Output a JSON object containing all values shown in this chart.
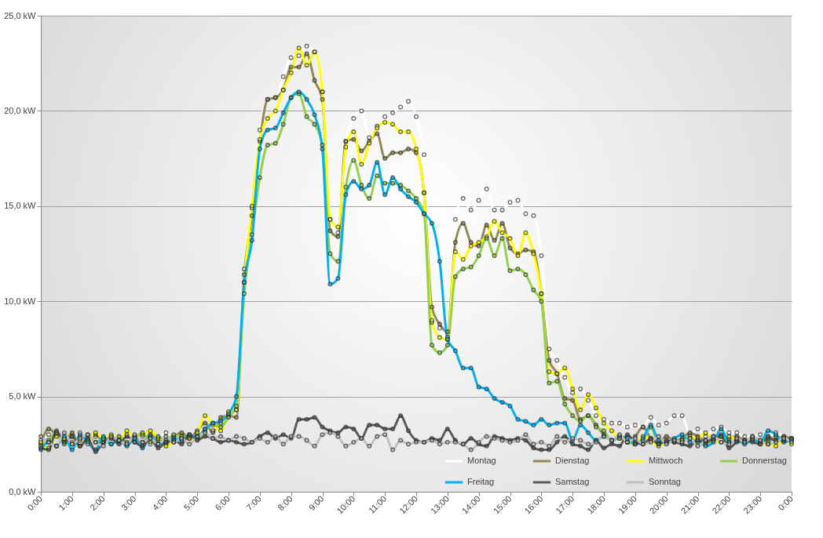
{
  "chart_data": {
    "type": "line",
    "x": [
      0,
      0.25,
      0.5,
      0.75,
      1,
      1.25,
      1.5,
      1.75,
      2,
      2.25,
      2.5,
      2.75,
      3,
      3.25,
      3.5,
      3.75,
      4,
      4.25,
      4.5,
      4.75,
      5,
      5.25,
      5.5,
      5.75,
      6,
      6.25,
      6.5,
      6.75,
      7,
      7.25,
      7.5,
      7.75,
      8,
      8.25,
      8.5,
      8.75,
      9,
      9.25,
      9.5,
      9.75,
      10,
      10.25,
      10.5,
      10.75,
      11,
      11.25,
      11.5,
      11.75,
      12,
      12.25,
      12.5,
      12.75,
      13,
      13.25,
      13.5,
      13.75,
      14,
      14.25,
      14.5,
      14.75,
      15,
      15.25,
      15.5,
      15.75,
      16,
      16.25,
      16.5,
      16.75,
      17,
      17.25,
      17.5,
      17.75,
      18,
      18.25,
      18.5,
      18.75,
      19,
      19.25,
      19.5,
      19.75,
      20,
      20.25,
      20.5,
      20.75,
      21,
      21.25,
      21.5,
      21.75,
      22,
      22.25,
      22.5,
      22.75,
      23,
      23.25,
      23.5,
      23.75,
      24
    ],
    "series": [
      {
        "name": "Montag",
        "color": "#ffffff",
        "values": [
          2.7,
          3.0,
          2.4,
          2.8,
          2.6,
          3.1,
          2.5,
          2.9,
          2.6,
          2.8,
          2.7,
          3.0,
          2.6,
          2.9,
          2.5,
          2.8,
          3.1,
          2.7,
          2.9,
          2.8,
          3.0,
          3.3,
          3.2,
          3.6,
          4.0,
          4.3,
          11.7,
          14.9,
          19.0,
          20.6,
          20.7,
          21.8,
          22.8,
          22.9,
          23.4,
          23.1,
          21.0,
          14.3,
          13.6,
          18.4,
          19.6,
          20.0,
          18.6,
          19.2,
          19.7,
          19.9,
          20.2,
          20.5,
          19.7,
          17.7,
          8.9,
          8.6,
          8.1,
          14.3,
          15.4,
          14.8,
          15.3,
          15.9,
          14.8,
          14.8,
          15.2,
          15.3,
          14.6,
          14.5,
          12.4,
          7.5,
          6.9,
          6.0,
          5.2,
          5.4,
          4.8,
          4.0,
          3.8,
          3.6,
          3.6,
          3.4,
          3.5,
          3.4,
          3.9,
          3.5,
          3.6,
          4.0,
          4.0,
          3.0,
          3.3,
          2.9,
          3.3,
          3.4,
          3.1,
          3.1,
          2.9,
          2.9,
          3.0,
          2.9,
          3.1,
          2.9,
          2.8
        ]
      },
      {
        "name": "Dienstag",
        "color": "#948a54",
        "values": [
          2.5,
          3.3,
          3.0,
          2.6,
          3.1,
          2.4,
          2.8,
          3.0,
          2.6,
          2.9,
          2.7,
          2.5,
          2.9,
          2.6,
          3.0,
          2.7,
          2.5,
          2.9,
          3.1,
          2.8,
          3.2,
          3.6,
          3.1,
          3.9,
          4.0,
          3.9,
          11.4,
          14.5,
          18.4,
          20.6,
          20.7,
          21.1,
          22.3,
          22.3,
          23.0,
          21.6,
          20.6,
          13.7,
          13.4,
          18.4,
          18.5,
          17.9,
          18.4,
          18.8,
          17.5,
          17.8,
          17.8,
          18.0,
          17.8,
          15.7,
          9.7,
          8.8,
          8.4,
          13.1,
          14.1,
          13.1,
          12.9,
          14.0,
          13.2,
          14.1,
          12.8,
          12.5,
          12.7,
          12.6,
          10.4,
          6.9,
          6.2,
          4.9,
          4.8,
          3.8,
          4.0,
          3.5,
          3.0,
          2.7,
          2.9,
          2.6,
          2.9,
          3.4,
          2.8,
          2.6,
          2.9,
          2.7,
          2.8,
          3.1,
          2.9,
          2.7,
          2.9,
          3.0,
          2.8,
          2.9,
          2.7,
          2.8,
          2.6,
          2.9,
          2.7,
          2.9,
          2.8
        ]
      },
      {
        "name": "Mittwoch",
        "color": "#ffff00",
        "values": [
          2.6,
          2.3,
          2.9,
          2.8,
          2.5,
          2.9,
          2.7,
          3.1,
          2.8,
          3.0,
          2.7,
          3.2,
          2.9,
          3.0,
          3.2,
          2.8,
          2.4,
          2.6,
          2.9,
          2.8,
          3.1,
          4.0,
          3.5,
          3.2,
          4.2,
          4.3,
          11.0,
          15.0,
          18.5,
          19.6,
          20.0,
          21.1,
          22.0,
          23.3,
          22.4,
          23.1,
          21.0,
          14.3,
          13.9,
          18.1,
          18.9,
          17.2,
          18.3,
          19.1,
          19.4,
          19.3,
          18.9,
          18.9,
          18.0,
          15.7,
          9.0,
          8.1,
          8.0,
          12.6,
          12.2,
          12.9,
          13.1,
          13.4,
          14.2,
          13.6,
          13.3,
          12.4,
          13.6,
          12.5,
          10.4,
          6.3,
          6.2,
          6.5,
          5.4,
          4.3,
          5.1,
          4.4,
          3.6,
          3.2,
          2.8,
          2.6,
          2.5,
          2.9,
          2.7,
          2.4,
          2.6,
          2.6,
          2.7,
          2.9,
          2.8,
          3.1,
          2.7,
          2.6,
          2.9,
          2.7,
          2.6,
          2.8,
          2.5,
          2.5,
          2.4,
          2.7,
          2.5
        ]
      },
      {
        "name": "Donnerstag",
        "color": "#92d050",
        "values": [
          2.4,
          2.7,
          3.1,
          2.5,
          2.9,
          2.7,
          3.0,
          2.6,
          2.8,
          2.5,
          2.9,
          2.6,
          2.8,
          3.1,
          2.6,
          2.9,
          2.7,
          3.0,
          2.8,
          2.9,
          2.8,
          3.2,
          3.6,
          3.4,
          3.9,
          4.5,
          10.4,
          13.5,
          16.5,
          18.2,
          18.3,
          19.3,
          20.7,
          20.9,
          19.7,
          19.3,
          18.2,
          12.5,
          12.1,
          16.0,
          17.4,
          16.1,
          15.4,
          16.6,
          16.2,
          16.2,
          16.1,
          15.8,
          15.4,
          14.6,
          7.7,
          7.3,
          7.7,
          11.3,
          11.7,
          11.8,
          12.4,
          13.3,
          12.4,
          13.3,
          11.6,
          11.7,
          11.4,
          10.6,
          10.0,
          5.7,
          5.8,
          4.6,
          4.0,
          3.7,
          4.0,
          3.4,
          3.2,
          2.7,
          2.8,
          2.6,
          2.5,
          2.7,
          3.4,
          2.5,
          2.6,
          2.6,
          2.7,
          2.8,
          2.6,
          2.5,
          2.7,
          2.9,
          2.6,
          2.7,
          2.6,
          2.8,
          2.7,
          2.6,
          2.9,
          2.8,
          2.7
        ]
      },
      {
        "name": "Freitag",
        "color": "#00b0f0",
        "values": [
          2.2,
          2.6,
          2.4,
          2.9,
          2.2,
          3.0,
          2.6,
          2.2,
          2.9,
          2.5,
          2.7,
          2.4,
          2.8,
          2.3,
          2.9,
          2.5,
          2.6,
          2.8,
          2.7,
          3.0,
          2.9,
          3.3,
          3.6,
          3.7,
          4.1,
          5.0,
          11.0,
          13.2,
          18.0,
          19.0,
          19.1,
          19.9,
          20.7,
          21.0,
          20.6,
          19.8,
          18.0,
          10.9,
          11.2,
          15.6,
          16.3,
          15.9,
          16.1,
          17.3,
          15.6,
          16.5,
          15.9,
          15.5,
          15.2,
          14.6,
          14.1,
          12.1,
          8.0,
          7.4,
          6.5,
          6.5,
          5.5,
          5.4,
          4.9,
          4.7,
          4.5,
          3.8,
          3.7,
          3.5,
          3.8,
          3.5,
          3.6,
          3.6,
          2.7,
          3.5,
          3.1,
          2.7,
          2.9,
          2.7,
          2.9,
          2.8,
          2.5,
          2.8,
          3.5,
          2.7,
          2.6,
          2.8,
          3.0,
          2.6,
          2.7,
          2.4,
          2.6,
          3.3,
          2.6,
          2.7,
          2.5,
          2.7,
          2.6,
          3.2,
          3.0,
          2.6,
          2.7
        ]
      },
      {
        "name": "Samstag",
        "color": "#595959",
        "values": [
          2.3,
          2.2,
          3.2,
          2.6,
          2.9,
          2.4,
          2.8,
          2.1,
          2.6,
          2.8,
          2.5,
          2.9,
          2.6,
          2.4,
          2.8,
          2.3,
          2.6,
          2.7,
          2.5,
          3.0,
          2.7,
          2.9,
          2.8,
          2.6,
          2.7,
          2.6,
          2.5,
          2.6,
          2.9,
          3.1,
          2.8,
          3.0,
          2.8,
          3.8,
          3.8,
          3.9,
          3.4,
          3.2,
          3.1,
          3.4,
          3.3,
          2.8,
          3.5,
          3.5,
          3.3,
          3.3,
          4.0,
          3.2,
          2.7,
          2.6,
          2.8,
          2.7,
          3.3,
          2.7,
          2.5,
          2.8,
          2.5,
          2.4,
          2.9,
          2.8,
          2.7,
          2.8,
          2.7,
          2.3,
          2.2,
          2.2,
          2.6,
          2.9,
          2.5,
          2.4,
          2.2,
          2.7,
          2.3,
          2.5,
          2.4,
          3.0,
          2.6,
          2.5,
          2.8,
          2.5,
          2.7,
          2.6,
          2.5,
          2.4,
          2.7,
          2.6,
          2.8,
          2.9,
          2.3,
          2.6,
          2.7,
          2.6,
          2.5,
          2.8,
          2.7,
          2.7,
          2.8
        ]
      },
      {
        "name": "Sonntag",
        "color": "#bfbfbf",
        "values": [
          2.9,
          2.6,
          2.4,
          3.1,
          2.5,
          2.8,
          3.0,
          2.6,
          2.4,
          2.9,
          2.7,
          2.5,
          3.0,
          2.6,
          2.8,
          2.5,
          2.9,
          2.6,
          2.8,
          2.5,
          2.9,
          3.1,
          2.8,
          2.9,
          2.7,
          2.9,
          2.8,
          2.6,
          2.8,
          2.6,
          2.9,
          2.5,
          2.9,
          2.9,
          2.7,
          2.4,
          3.0,
          3.1,
          2.9,
          2.4,
          2.6,
          2.8,
          2.4,
          2.9,
          3.0,
          2.2,
          2.7,
          2.5,
          2.6,
          2.6,
          2.7,
          2.5,
          2.6,
          2.6,
          2.5,
          2.2,
          2.6,
          2.9,
          2.8,
          2.7,
          2.6,
          2.7,
          3.0,
          2.5,
          2.6,
          2.4,
          2.9,
          2.6,
          2.8,
          2.7,
          2.5,
          2.6,
          2.9,
          2.7,
          3.0,
          2.6,
          2.8,
          2.5,
          2.6,
          2.9,
          2.5,
          2.7,
          2.6,
          2.8,
          2.4,
          2.7,
          2.9,
          2.6,
          2.5,
          2.8,
          2.6,
          2.9,
          2.7,
          2.5,
          2.6,
          2.8,
          2.6
        ]
      }
    ],
    "xlim": [
      0,
      24
    ],
    "xticks": [
      {
        "value": 0,
        "label": "0:00"
      },
      {
        "value": 1,
        "label": "1:00"
      },
      {
        "value": 2,
        "label": "2:00"
      },
      {
        "value": 3,
        "label": "3:00"
      },
      {
        "value": 4,
        "label": "4:00"
      },
      {
        "value": 5,
        "label": "5:00"
      },
      {
        "value": 6,
        "label": "6:00"
      },
      {
        "value": 7,
        "label": "7:00"
      },
      {
        "value": 8,
        "label": "8:00"
      },
      {
        "value": 9,
        "label": "9:00"
      },
      {
        "value": 10,
        "label": "10:00"
      },
      {
        "value": 11,
        "label": "11:00"
      },
      {
        "value": 12,
        "label": "12:00"
      },
      {
        "value": 13,
        "label": "13:00"
      },
      {
        "value": 14,
        "label": "14:00"
      },
      {
        "value": 15,
        "label": "15:00"
      },
      {
        "value": 16,
        "label": "16:00"
      },
      {
        "value": 17,
        "label": "17:00"
      },
      {
        "value": 18,
        "label": "18:00"
      },
      {
        "value": 19,
        "label": "19:00"
      },
      {
        "value": 20,
        "label": "20:00"
      },
      {
        "value": 21,
        "label": "21:00"
      },
      {
        "value": 22,
        "label": "22:00"
      },
      {
        "value": 23,
        "label": "23:00"
      },
      {
        "value": 24,
        "label": "0:00"
      }
    ],
    "ylim": [
      0,
      25
    ],
    "yticks": [
      {
        "value": 0,
        "label": "0,0 kW"
      },
      {
        "value": 5,
        "label": "5,0 kW"
      },
      {
        "value": 10,
        "label": "10,0 kW"
      },
      {
        "value": 15,
        "label": "15,0 kW"
      },
      {
        "value": 20,
        "label": "20,0 kW"
      },
      {
        "value": 25,
        "label": "25,0 kW"
      }
    ],
    "grid": "y",
    "legend": "bottom right",
    "marker": "circle",
    "line_style": "solid"
  }
}
